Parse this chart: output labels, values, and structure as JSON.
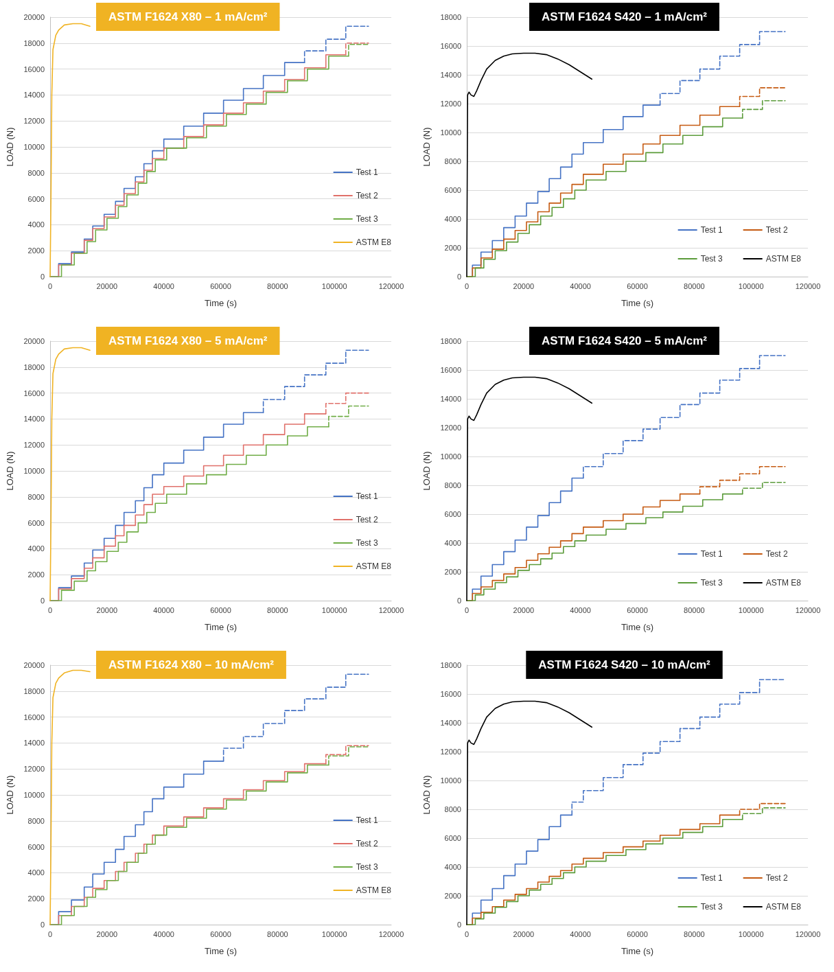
{
  "chart_data": [
    {
      "type": "step",
      "title": "ASTM F1624 X80 – 1 mA/cm²",
      "xlabel": "Time (s)",
      "ylabel": "LOAD (N)",
      "xlim": [
        0,
        120000
      ],
      "xticks": [
        0,
        20000,
        40000,
        60000,
        80000,
        100000,
        120000
      ],
      "ylim": [
        0,
        20000
      ],
      "yticks": [
        0,
        2000,
        4000,
        6000,
        8000,
        10000,
        12000,
        14000,
        16000,
        18000,
        20000
      ],
      "grid": "y",
      "legend": "right",
      "series": [
        {
          "name": "Test 1",
          "color": "#4472c4",
          "x": [
            0,
            3000,
            7500,
            12000,
            15000,
            19000,
            23000,
            26000,
            30000,
            33000,
            36000,
            40000,
            47000,
            54000,
            61000,
            68000,
            75000,
            82500,
            89500
          ],
          "values": [
            0,
            1000,
            1900,
            2900,
            3900,
            4800,
            5800,
            6800,
            7700,
            8700,
            9700,
            10600,
            11600,
            12600,
            13600,
            14500,
            15500,
            16500,
            16500
          ]
        },
        {
          "color": "#4472c4",
          "line_style": "dashed",
          "x": [
            89500,
            89500,
            97000,
            104000,
            112000
          ],
          "values": [
            16500,
            17400,
            18300,
            19300,
            19300
          ]
        },
        {
          "name": "Test 2",
          "color": "#e0706a",
          "x": [
            0,
            3000,
            7500,
            12000,
            15000,
            19000,
            23000,
            26000,
            30000,
            33000,
            36000,
            40000,
            47000,
            54000,
            61000,
            68000,
            75000,
            82500,
            89500,
            97000,
            104000
          ],
          "values": [
            0,
            900,
            1800,
            2800,
            3700,
            4600,
            5500,
            6400,
            7300,
            8200,
            9100,
            9900,
            10800,
            11700,
            12600,
            13400,
            14300,
            15200,
            16100,
            17100,
            17100
          ]
        },
        {
          "color": "#e0706a",
          "line_style": "dashed",
          "x": [
            104000,
            104000,
            112000
          ],
          "values": [
            17100,
            18000,
            18000
          ]
        },
        {
          "name": "Test 3",
          "color": "#70ad47",
          "x": [
            0,
            4000,
            8500,
            13000,
            16000,
            20000,
            24000,
            27000,
            31000,
            34000,
            37000,
            41000,
            48000,
            55000,
            62000,
            69000,
            76000,
            83500,
            90500,
            98000,
            105000
          ],
          "values": [
            0,
            900,
            1800,
            2700,
            3600,
            4500,
            5400,
            6300,
            7200,
            8100,
            9000,
            9900,
            10700,
            11600,
            12500,
            13300,
            14200,
            15100,
            16000,
            17000,
            17000
          ]
        },
        {
          "color": "#70ad47",
          "line_style": "dashed",
          "x": [
            105000,
            105000,
            112000
          ],
          "values": [
            17000,
            17900,
            17900
          ]
        },
        {
          "name": "ASTM E8",
          "type": "line",
          "color": "#f0b323",
          "x": [
            0,
            300,
            600,
            1000,
            2000,
            3000,
            5000,
            8000,
            11000,
            14000
          ],
          "values": [
            0,
            6000,
            14000,
            17500,
            18600,
            19000,
            19400,
            19500,
            19500,
            19300
          ]
        }
      ]
    },
    {
      "type": "step",
      "title": "ASTM F1624 S420 – 1 mA/cm²",
      "xlabel": "Time (s)",
      "ylabel": "LOAD (N)",
      "xlim": [
        0,
        120000
      ],
      "xticks": [
        0,
        20000,
        40000,
        60000,
        80000,
        100000,
        120000
      ],
      "ylim": [
        0,
        18000
      ],
      "yticks": [
        0,
        2000,
        4000,
        6000,
        8000,
        10000,
        12000,
        14000,
        16000,
        18000
      ],
      "grid": "y",
      "legend": "bottom right",
      "series": [
        {
          "name": "Test 1",
          "color": "#4472c4",
          "x": [
            0,
            2000,
            5000,
            9000,
            13000,
            17000,
            21000,
            25000,
            29000,
            33000,
            37000,
            41000,
            48000,
            55000,
            62000,
            68000
          ],
          "values": [
            0,
            800,
            1700,
            2500,
            3400,
            4200,
            5100,
            5900,
            6800,
            7600,
            8500,
            9300,
            10200,
            11100,
            11900,
            11900
          ]
        },
        {
          "color": "#4472c4",
          "line_style": "dashed",
          "x": [
            68000,
            68000,
            75000,
            82000,
            89000,
            96000,
            103000,
            112000
          ],
          "values": [
            11900,
            12700,
            13600,
            14400,
            15300,
            16100,
            17000,
            17000
          ]
        },
        {
          "name": "Test 2",
          "color": "#c55a11",
          "x": [
            0,
            2000,
            5000,
            9000,
            13000,
            17000,
            21000,
            25000,
            29000,
            33000,
            37000,
            41000,
            48000,
            55000,
            62000,
            68000,
            75000,
            82000,
            89000,
            96000
          ],
          "values": [
            0,
            600,
            1300,
            1900,
            2600,
            3200,
            3800,
            4500,
            5100,
            5800,
            6400,
            7100,
            7800,
            8500,
            9200,
            9800,
            10500,
            11200,
            11800,
            11800
          ]
        },
        {
          "color": "#c55a11",
          "line_style": "dashed",
          "x": [
            96000,
            96000,
            103000,
            112000
          ],
          "values": [
            11800,
            12500,
            13100,
            13100
          ]
        },
        {
          "name": "Test 3",
          "color": "#5b9b3a",
          "x": [
            0,
            3000,
            6000,
            10000,
            14000,
            18000,
            22000,
            26000,
            30000,
            34000,
            38000,
            42000,
            49000,
            56000,
            63000,
            69000,
            76000,
            83000,
            90000,
            97000
          ],
          "values": [
            0,
            600,
            1200,
            1800,
            2400,
            3000,
            3600,
            4200,
            4800,
            5400,
            6000,
            6700,
            7300,
            8000,
            8600,
            9200,
            9800,
            10400,
            11000,
            11000
          ]
        },
        {
          "color": "#5b9b3a",
          "line_style": "dashed",
          "x": [
            97000,
            97000,
            104000,
            112000
          ],
          "values": [
            11000,
            11600,
            12200,
            12200
          ]
        },
        {
          "name": "ASTM E8",
          "type": "line",
          "color": "#000000",
          "x": [
            0,
            300,
            800,
            1500,
            2500,
            3500,
            5000,
            7000,
            10000,
            13000,
            16000,
            20000,
            24000,
            28000,
            32000,
            36000,
            40000,
            44000
          ],
          "values": [
            0,
            12600,
            12800,
            12600,
            12500,
            12900,
            13600,
            14400,
            15000,
            15300,
            15450,
            15500,
            15500,
            15400,
            15100,
            14700,
            14200,
            13700
          ]
        }
      ]
    },
    {
      "type": "step",
      "title": "ASTM F1624 X80 – 5 mA/cm²",
      "xlabel": "Time (s)",
      "ylabel": "LOAD (N)",
      "xlim": [
        0,
        120000
      ],
      "xticks": [
        0,
        20000,
        40000,
        60000,
        80000,
        100000,
        120000
      ],
      "ylim": [
        0,
        20000
      ],
      "yticks": [
        0,
        2000,
        4000,
        6000,
        8000,
        10000,
        12000,
        14000,
        16000,
        18000,
        20000
      ],
      "grid": "y",
      "legend": "right",
      "series": [
        {
          "name": "Test 1",
          "color": "#4472c4",
          "x": [
            0,
            3000,
            7500,
            12000,
            15000,
            19000,
            23000,
            26000,
            30000,
            33000,
            36000,
            40000,
            47000,
            54000,
            61000,
            68000,
            75000
          ],
          "values": [
            0,
            1000,
            1900,
            2900,
            3900,
            4800,
            5800,
            6800,
            7700,
            8700,
            9700,
            10600,
            11600,
            12600,
            13600,
            14500,
            14500
          ]
        },
        {
          "color": "#4472c4",
          "line_style": "dashed",
          "x": [
            75000,
            75000,
            82500,
            89500,
            97000,
            104000,
            112000
          ],
          "values": [
            14500,
            15500,
            16500,
            17400,
            18300,
            19300,
            19300
          ]
        },
        {
          "name": "Test 2",
          "color": "#e0706a",
          "x": [
            0,
            3000,
            7500,
            12000,
            15000,
            19000,
            23000,
            26000,
            30000,
            33000,
            36000,
            40000,
            47000,
            54000,
            61000,
            68000,
            75000,
            82500,
            89500,
            97000
          ],
          "values": [
            0,
            900,
            1700,
            2500,
            3300,
            4200,
            5000,
            5800,
            6600,
            7400,
            8200,
            8800,
            9600,
            10400,
            11200,
            12000,
            12800,
            13600,
            14400,
            14400
          ]
        },
        {
          "color": "#e0706a",
          "line_style": "dashed",
          "x": [
            97000,
            97000,
            104000,
            112000
          ],
          "values": [
            14400,
            15200,
            16000,
            16000
          ]
        },
        {
          "name": "Test 3",
          "color": "#70ad47",
          "x": [
            0,
            4000,
            8500,
            13000,
            16000,
            20000,
            24000,
            27000,
            31000,
            34000,
            37000,
            41000,
            48000,
            55000,
            62000,
            69000,
            76000,
            83500,
            90500,
            98000
          ],
          "values": [
            0,
            800,
            1500,
            2300,
            3000,
            3800,
            4500,
            5300,
            6000,
            6800,
            7500,
            8200,
            9000,
            9700,
            10500,
            11200,
            12000,
            12700,
            13400,
            13400
          ]
        },
        {
          "color": "#70ad47",
          "line_style": "dashed",
          "x": [
            98000,
            98000,
            105000,
            112000
          ],
          "values": [
            13400,
            14200,
            15000,
            15000
          ]
        },
        {
          "name": "ASTM E8",
          "type": "line",
          "color": "#f0b323",
          "x": [
            0,
            300,
            600,
            1000,
            2000,
            3000,
            5000,
            8000,
            11000,
            14000
          ],
          "values": [
            0,
            6000,
            14000,
            17500,
            18600,
            19000,
            19400,
            19500,
            19500,
            19300
          ]
        }
      ]
    },
    {
      "type": "step",
      "title": "ASTM F1624 S420 – 5 mA/cm²",
      "xlabel": "Time (s)",
      "ylabel": "LOAD (N)",
      "xlim": [
        0,
        120000
      ],
      "xticks": [
        0,
        20000,
        40000,
        60000,
        80000,
        100000,
        120000
      ],
      "ylim": [
        0,
        18000
      ],
      "yticks": [
        0,
        2000,
        4000,
        6000,
        8000,
        10000,
        12000,
        14000,
        16000,
        18000
      ],
      "grid": "y",
      "legend": "bottom right",
      "series": [
        {
          "name": "Test 1",
          "color": "#4472c4",
          "x": [
            0,
            2000,
            5000,
            9000,
            13000,
            17000,
            21000,
            25000,
            29000,
            33000,
            37000,
            41000
          ],
          "values": [
            0,
            800,
            1700,
            2500,
            3400,
            4200,
            5100,
            5900,
            6800,
            7600,
            8500,
            8500
          ]
        },
        {
          "color": "#4472c4",
          "line_style": "dashed",
          "x": [
            41000,
            41000,
            48000,
            55000,
            62000,
            68000,
            75000,
            82000,
            89000,
            96000,
            103000,
            112000
          ],
          "values": [
            8500,
            9300,
            10200,
            11100,
            11900,
            12700,
            13600,
            14400,
            15300,
            16100,
            17000,
            17000
          ]
        },
        {
          "name": "Test 2",
          "color": "#c55a11",
          "x": [
            0,
            2000,
            5000,
            9000,
            13000,
            17000,
            21000,
            25000,
            29000,
            33000,
            37000,
            41000,
            48000,
            55000,
            62000,
            68000,
            75000,
            82000
          ],
          "values": [
            0,
            500,
            950,
            1400,
            1850,
            2300,
            2800,
            3250,
            3700,
            4150,
            4650,
            5100,
            5550,
            6000,
            6500,
            6950,
            7400,
            7400
          ]
        },
        {
          "color": "#c55a11",
          "line_style": "dashed",
          "x": [
            82000,
            82000,
            89000,
            96000,
            103000,
            112000
          ],
          "values": [
            7400,
            7900,
            8350,
            8800,
            9300,
            9300
          ]
        },
        {
          "name": "Test 3",
          "color": "#5b9b3a",
          "x": [
            0,
            3000,
            6000,
            10000,
            14000,
            18000,
            22000,
            26000,
            30000,
            34000,
            38000,
            42000,
            49000,
            56000,
            63000,
            69000,
            76000,
            83000,
            90000,
            97000
          ],
          "values": [
            0,
            400,
            800,
            1250,
            1650,
            2100,
            2500,
            2900,
            3300,
            3750,
            4150,
            4550,
            4950,
            5350,
            5750,
            6150,
            6550,
            7000,
            7400,
            7400
          ]
        },
        {
          "color": "#5b9b3a",
          "line_style": "dashed",
          "x": [
            97000,
            97000,
            104000,
            112000
          ],
          "values": [
            7400,
            7800,
            8200,
            8200
          ]
        },
        {
          "name": "ASTM E8",
          "type": "line",
          "color": "#000000",
          "x": [
            0,
            300,
            800,
            1500,
            2500,
            3500,
            5000,
            7000,
            10000,
            13000,
            16000,
            20000,
            24000,
            28000,
            32000,
            36000,
            40000,
            44000
          ],
          "values": [
            0,
            12600,
            12800,
            12600,
            12500,
            12900,
            13600,
            14400,
            15000,
            15300,
            15450,
            15500,
            15500,
            15400,
            15100,
            14700,
            14200,
            13700
          ]
        }
      ]
    },
    {
      "type": "step",
      "title": "ASTM F1624 X80 – 10 mA/cm²",
      "xlabel": "Time (s)",
      "ylabel": "LOAD (N)",
      "xlim": [
        0,
        120000
      ],
      "xticks": [
        0,
        20000,
        40000,
        60000,
        80000,
        100000,
        120000
      ],
      "ylim": [
        0,
        20000
      ],
      "yticks": [
        0,
        2000,
        4000,
        6000,
        8000,
        10000,
        12000,
        14000,
        16000,
        18000,
        20000
      ],
      "grid": "y",
      "legend": "right",
      "series": [
        {
          "name": "Test 1",
          "color": "#4472c4",
          "x": [
            0,
            3000,
            7500,
            12000,
            15000,
            19000,
            23000,
            26000,
            30000,
            33000,
            36000,
            40000,
            47000,
            54000,
            61000
          ],
          "values": [
            0,
            1000,
            1900,
            2900,
            3900,
            4800,
            5800,
            6800,
            7700,
            8700,
            9700,
            10600,
            11600,
            12600,
            12600
          ]
        },
        {
          "color": "#4472c4",
          "line_style": "dashed",
          "x": [
            61000,
            61000,
            68000,
            75000,
            82500,
            89500,
            97000,
            104000,
            112000
          ],
          "values": [
            12600,
            13600,
            14500,
            15500,
            16500,
            17400,
            18300,
            19300,
            19300
          ]
        },
        {
          "name": "Test 2",
          "color": "#e0706a",
          "x": [
            0,
            3000,
            7500,
            12000,
            15000,
            19000,
            23000,
            26000,
            30000,
            33000,
            36000,
            40000,
            47000,
            54000,
            61000,
            68000,
            75000,
            82500,
            89500,
            97000
          ],
          "values": [
            0,
            700,
            1400,
            2100,
            2800,
            3400,
            4100,
            4800,
            5500,
            6200,
            6900,
            7600,
            8300,
            9000,
            9700,
            10400,
            11100,
            11800,
            12400,
            12400
          ]
        },
        {
          "color": "#e0706a",
          "line_style": "dashed",
          "x": [
            97000,
            97000,
            104000,
            112000
          ],
          "values": [
            12400,
            13100,
            13800,
            13800
          ]
        },
        {
          "name": "Test 3",
          "color": "#70ad47",
          "x": [
            0,
            4000,
            8500,
            13000,
            16000,
            20000,
            24000,
            27000,
            31000,
            34000,
            37000,
            41000,
            48000,
            55000,
            62000,
            69000,
            76000,
            83500,
            90500,
            98000
          ],
          "values": [
            0,
            700,
            1400,
            2100,
            2700,
            3400,
            4100,
            4800,
            5500,
            6200,
            6900,
            7500,
            8200,
            8900,
            9600,
            10300,
            11000,
            11700,
            12300,
            12300
          ]
        },
        {
          "color": "#70ad47",
          "line_style": "dashed",
          "x": [
            98000,
            98000,
            105000,
            112000
          ],
          "values": [
            12300,
            13000,
            13700,
            13700
          ]
        },
        {
          "name": "ASTM E8",
          "type": "line",
          "color": "#f0b323",
          "x": [
            0,
            300,
            600,
            1000,
            2000,
            3000,
            5000,
            8000,
            11000,
            14000
          ],
          "values": [
            0,
            6000,
            14000,
            17500,
            18600,
            19000,
            19400,
            19600,
            19600,
            19500
          ]
        }
      ]
    },
    {
      "type": "step",
      "title": "ASTM F1624 S420 – 10 mA/cm²",
      "xlabel": "Time (s)",
      "ylabel": "LOAD (N)",
      "xlim": [
        0,
        120000
      ],
      "xticks": [
        0,
        20000,
        40000,
        60000,
        80000,
        100000,
        120000
      ],
      "ylim": [
        0,
        18000
      ],
      "yticks": [
        0,
        2000,
        4000,
        6000,
        8000,
        10000,
        12000,
        14000,
        16000,
        18000
      ],
      "grid": "y",
      "legend": "bottom right",
      "series": [
        {
          "name": "Test 1",
          "color": "#4472c4",
          "x": [
            0,
            2000,
            5000,
            9000,
            13000,
            17000,
            21000,
            25000,
            29000,
            33000,
            37000
          ],
          "values": [
            0,
            800,
            1700,
            2500,
            3400,
            4200,
            5100,
            5900,
            6800,
            7600,
            7600
          ]
        },
        {
          "color": "#4472c4",
          "line_style": "dashed",
          "x": [
            37000,
            37000,
            41000,
            48000,
            55000,
            62000,
            68000,
            75000,
            82000,
            89000,
            96000,
            103000,
            112000
          ],
          "values": [
            7600,
            8500,
            9300,
            10200,
            11100,
            11900,
            12700,
            13600,
            14400,
            15300,
            16100,
            17000,
            17000
          ]
        },
        {
          "name": "Test 2",
          "color": "#c55a11",
          "x": [
            0,
            2000,
            5000,
            9000,
            13000,
            17000,
            21000,
            25000,
            29000,
            33000,
            37000,
            41000,
            48000,
            55000,
            62000,
            68000,
            75000,
            82000,
            89000,
            96000
          ],
          "values": [
            0,
            450,
            850,
            1250,
            1700,
            2100,
            2500,
            2950,
            3350,
            3750,
            4200,
            4600,
            5000,
            5400,
            5800,
            6200,
            6600,
            7000,
            7600,
            7600
          ]
        },
        {
          "color": "#c55a11",
          "line_style": "dashed",
          "x": [
            96000,
            96000,
            103000,
            112000
          ],
          "values": [
            7600,
            8000,
            8400,
            8400
          ]
        },
        {
          "name": "Test 3",
          "color": "#5b9b3a",
          "x": [
            0,
            3000,
            6000,
            10000,
            14000,
            18000,
            22000,
            26000,
            30000,
            34000,
            38000,
            42000,
            49000,
            56000,
            63000,
            69000,
            76000,
            83000,
            90000,
            97000
          ],
          "values": [
            0,
            400,
            800,
            1200,
            1600,
            2000,
            2400,
            2800,
            3200,
            3600,
            4000,
            4400,
            4800,
            5200,
            5600,
            6000,
            6400,
            6800,
            7300,
            7300
          ]
        },
        {
          "color": "#5b9b3a",
          "line_style": "dashed",
          "x": [
            97000,
            97000,
            104000,
            112000
          ],
          "values": [
            7300,
            7700,
            8100,
            8100
          ]
        },
        {
          "name": "ASTM E8",
          "type": "line",
          "color": "#000000",
          "x": [
            0,
            300,
            800,
            1500,
            2500,
            3500,
            5000,
            7000,
            10000,
            13000,
            16000,
            20000,
            24000,
            28000,
            32000,
            36000,
            40000,
            44000
          ],
          "values": [
            0,
            12600,
            12800,
            12600,
            12500,
            12900,
            13600,
            14400,
            15000,
            15300,
            15450,
            15500,
            15500,
            15400,
            15100,
            14700,
            14200,
            13700
          ]
        }
      ]
    }
  ]
}
